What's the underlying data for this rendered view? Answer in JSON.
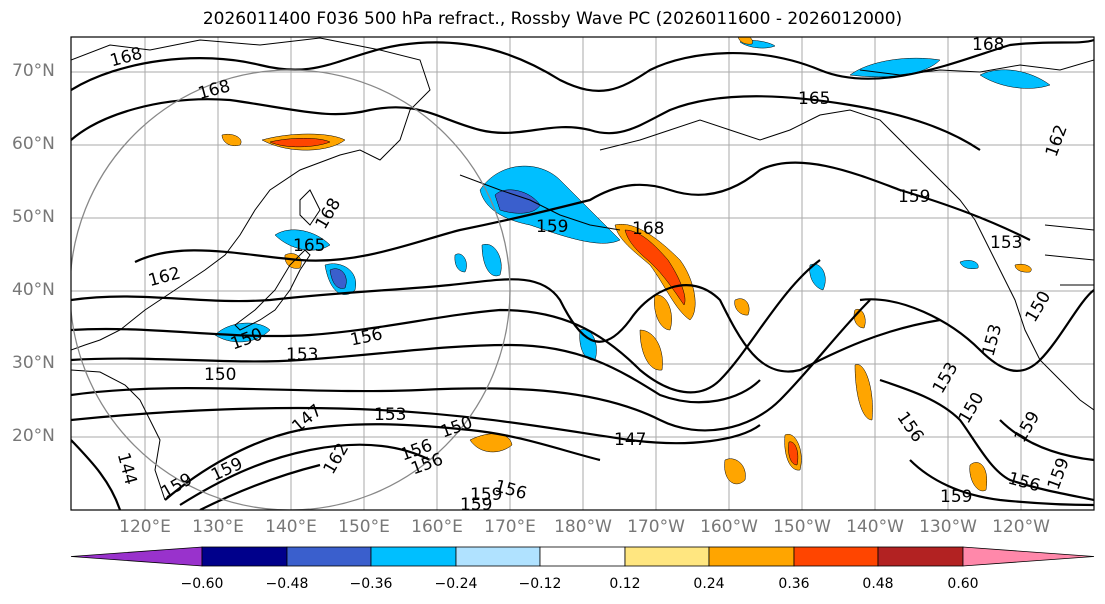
{
  "title": "2026011400 F036 500 hPa refract., Rossby Wave PC (2026011600 - 2026012000)",
  "lat_labels": [
    "70°N",
    "60°N",
    "50°N",
    "40°N",
    "30°N",
    "20°N"
  ],
  "lon_labels": [
    "120°E",
    "130°E",
    "140°E",
    "150°E",
    "160°E",
    "170°E",
    "180°W",
    "170°W",
    "160°W",
    "150°W",
    "140°W",
    "130°W",
    "120°W"
  ],
  "colorbar": {
    "ticks": [
      "−0.60",
      "−0.48",
      "−0.36",
      "−0.24",
      "−0.12",
      "0.12",
      "0.24",
      "0.36",
      "0.48",
      "0.60"
    ],
    "colors": [
      "#9932cc",
      "#00008b",
      "#3a5fcd",
      "#00bfff",
      "#b0e2ff",
      "#ffffff",
      "#ffe680",
      "#ffa500",
      "#ff4500",
      "#b22222",
      "#ff88aa"
    ]
  },
  "contour_labels": [
    "168",
    "168",
    "168",
    "165",
    "162",
    "159",
    "168",
    "159",
    "165",
    "168",
    "162",
    "159",
    "153",
    "150",
    "153",
    "156",
    "153",
    "150",
    "147",
    "150",
    "153",
    "156",
    "159",
    "162",
    "156",
    "159",
    "153",
    "150",
    "159",
    "147",
    "156",
    "150",
    "159",
    "156",
    "159",
    "156",
    "159",
    "144"
  ]
}
